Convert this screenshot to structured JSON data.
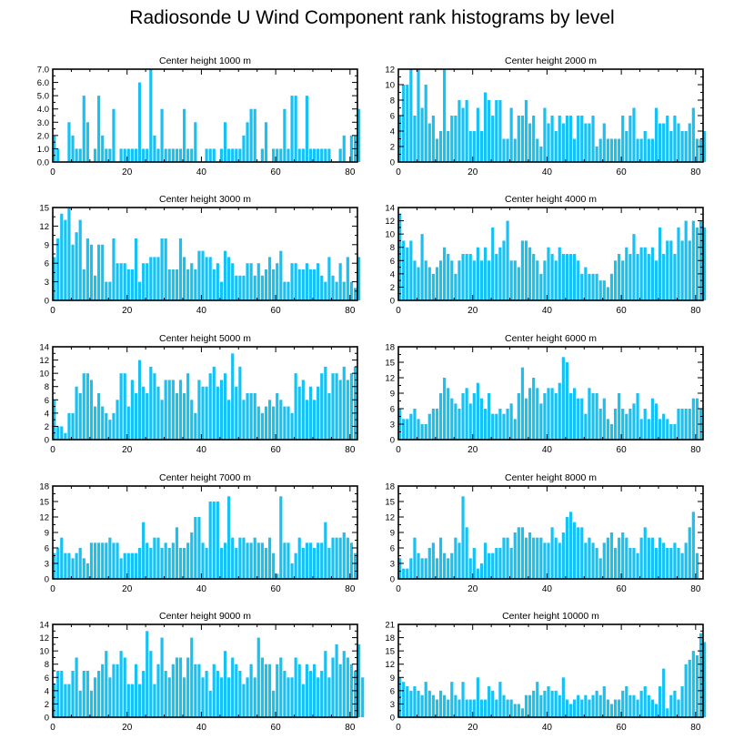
{
  "title": "Radiosonde U Wind Component rank histograms by level",
  "colors": {
    "bar": "#17c1f4",
    "bar_edge": "#0aa8dc",
    "axis": "#000000",
    "background": "#ffffff"
  },
  "chart_data": [
    {
      "type": "bar",
      "title": "Center height 1000 m",
      "xlim": [
        0,
        82
      ],
      "ylim": [
        0,
        7
      ],
      "xticks": [
        0,
        20,
        40,
        60,
        80
      ],
      "yticks": [
        0,
        1,
        2,
        3,
        4,
        5,
        6,
        7
      ],
      "ytick_labels": [
        "0.0",
        "1.0",
        "2.0",
        "3.0",
        "4.0",
        "5.0",
        "6.0",
        "7.0"
      ],
      "values": [
        2,
        1,
        0,
        0,
        3,
        2,
        1,
        1,
        5,
        3,
        0,
        1,
        5,
        2,
        1,
        1,
        4,
        0,
        1,
        1,
        1,
        1,
        1,
        6,
        1,
        1,
        7,
        2,
        1,
        4,
        1,
        1,
        1,
        1,
        1,
        4,
        1,
        1,
        3,
        0,
        0,
        1,
        1,
        1,
        0,
        1,
        3,
        1,
        1,
        1,
        1,
        2,
        3,
        4,
        4,
        0,
        1,
        3,
        0,
        1,
        1,
        1,
        4,
        1,
        5,
        5,
        1,
        1,
        5,
        1,
        1,
        1,
        1,
        1,
        1,
        0,
        0,
        1,
        2,
        0,
        2,
        2,
        4
      ]
    },
    {
      "type": "bar",
      "title": "Center height 2000 m",
      "xlim": [
        0,
        82
      ],
      "ylim": [
        0,
        12
      ],
      "xticks": [
        0,
        20,
        40,
        60,
        80
      ],
      "yticks": [
        0,
        2,
        4,
        6,
        8,
        10,
        12
      ],
      "ytick_labels": [
        "0",
        "2",
        "4",
        "6",
        "8",
        "10",
        "12"
      ],
      "values": [
        6,
        10,
        10,
        12,
        6,
        12,
        7,
        10,
        5,
        6,
        3,
        4,
        12,
        4,
        6,
        6,
        8,
        7,
        8,
        4,
        4,
        7,
        4,
        9,
        8,
        6,
        8,
        8,
        3,
        3,
        7,
        3,
        6,
        6,
        8,
        5,
        6,
        3,
        2,
        7,
        5,
        6,
        4,
        6,
        5,
        6,
        6,
        3,
        6,
        6,
        5,
        5,
        6,
        2,
        3,
        5,
        3,
        3,
        3,
        3,
        6,
        4,
        6,
        7,
        3,
        3,
        4,
        3,
        3,
        7,
        5,
        5,
        6,
        4,
        6,
        5,
        4,
        4,
        5,
        7,
        3,
        3,
        4
      ]
    },
    {
      "type": "bar",
      "title": "Center height 3000 m",
      "xlim": [
        0,
        82
      ],
      "ylim": [
        0,
        15
      ],
      "xticks": [
        0,
        20,
        40,
        60,
        80
      ],
      "yticks": [
        0,
        3,
        6,
        9,
        12,
        15
      ],
      "ytick_labels": [
        "0",
        "3",
        "6",
        "9",
        "12",
        "15"
      ],
      "values": [
        7,
        10,
        14,
        13,
        15,
        9,
        11,
        13,
        5,
        10,
        9,
        4,
        9,
        9,
        3,
        3,
        10,
        6,
        6,
        6,
        5,
        5,
        10,
        3,
        6,
        6,
        7,
        7,
        7,
        10,
        10,
        5,
        5,
        5,
        10,
        7,
        5,
        6,
        5,
        8,
        8,
        7,
        7,
        5,
        6,
        3,
        8,
        7,
        6,
        4,
        4,
        4,
        6,
        6,
        4,
        6,
        4,
        5,
        7,
        5,
        6,
        8,
        3,
        3,
        6,
        6,
        5,
        5,
        6,
        5,
        5,
        6,
        4,
        3,
        7,
        4,
        3,
        6,
        3,
        7,
        3,
        2,
        7
      ]
    },
    {
      "type": "bar",
      "title": "Center height 4000 m",
      "xlim": [
        0,
        82
      ],
      "ylim": [
        0,
        14
      ],
      "xticks": [
        0,
        20,
        40,
        60,
        80
      ],
      "yticks": [
        0,
        2,
        4,
        6,
        8,
        10,
        12,
        14
      ],
      "ytick_labels": [
        "0",
        "2",
        "4",
        "6",
        "8",
        "10",
        "12",
        "14"
      ],
      "values": [
        13,
        9,
        8,
        9,
        6,
        5,
        10,
        6,
        5,
        4,
        5,
        6,
        8,
        7,
        6,
        4,
        6,
        7,
        7,
        7,
        6,
        8,
        6,
        8,
        6,
        11,
        7,
        8,
        9,
        12,
        6,
        6,
        5,
        9,
        9,
        8,
        7,
        6,
        4,
        6,
        8,
        7,
        6,
        8,
        7,
        7,
        7,
        7,
        6,
        4,
        5,
        4,
        4,
        4,
        3,
        3,
        2,
        4,
        6,
        7,
        6,
        8,
        7,
        10,
        7,
        8,
        8,
        7,
        8,
        6,
        11,
        7,
        9,
        9,
        7,
        11,
        9,
        12,
        9,
        12,
        11,
        12,
        11
      ]
    },
    {
      "type": "bar",
      "title": "Center height 5000 m",
      "xlim": [
        0,
        82
      ],
      "ylim": [
        0,
        14
      ],
      "xticks": [
        0,
        20,
        40,
        60,
        80
      ],
      "yticks": [
        0,
        2,
        4,
        6,
        8,
        10,
        12,
        14
      ],
      "ytick_labels": [
        "0",
        "2",
        "4",
        "6",
        "8",
        "10",
        "12",
        "14"
      ],
      "values": [
        6,
        2,
        2,
        1,
        4,
        4,
        8,
        7,
        10,
        10,
        9,
        5,
        7,
        5,
        4,
        3,
        4,
        6,
        10,
        10,
        5,
        9,
        7,
        12,
        8,
        7,
        11,
        10,
        8,
        6,
        9,
        9,
        9,
        7,
        9,
        7,
        10,
        6,
        4,
        9,
        8,
        8,
        10,
        11,
        8,
        9,
        10,
        6,
        13,
        8,
        11,
        6,
        7,
        7,
        7,
        5,
        4,
        5,
        6,
        5,
        7,
        6,
        5,
        5,
        4,
        10,
        8,
        9,
        6,
        8,
        6,
        8,
        10,
        11,
        7,
        10,
        10,
        9,
        11,
        9,
        10,
        11
      ]
    },
    {
      "type": "bar",
      "title": "Center height 6000 m",
      "xlim": [
        0,
        82
      ],
      "ylim": [
        0,
        18
      ],
      "xticks": [
        0,
        20,
        40,
        60,
        80
      ],
      "yticks": [
        0,
        3,
        6,
        9,
        12,
        15,
        18
      ],
      "ytick_labels": [
        "0",
        "3",
        "6",
        "9",
        "12",
        "15",
        "18"
      ],
      "values": [
        6,
        4,
        4,
        5,
        6,
        4,
        3,
        3,
        5,
        6,
        6,
        9,
        12,
        10,
        8,
        7,
        6,
        9,
        10,
        7,
        9,
        11,
        8,
        6,
        9,
        5,
        5,
        6,
        5,
        6,
        7,
        4,
        9,
        14,
        8,
        10,
        12,
        10,
        7,
        9,
        10,
        10,
        9,
        11,
        16,
        15,
        9,
        10,
        8,
        8,
        5,
        10,
        9,
        9,
        6,
        8,
        4,
        3,
        6,
        9,
        6,
        5,
        6,
        7,
        9,
        4,
        6,
        4,
        8,
        7,
        4,
        5,
        4,
        3,
        3,
        6,
        6,
        6,
        6,
        8,
        8,
        6
      ]
    },
    {
      "type": "bar",
      "title": "Center height 7000 m",
      "xlim": [
        0,
        82
      ],
      "ylim": [
        0,
        18
      ],
      "xticks": [
        0,
        20,
        40,
        60,
        80
      ],
      "yticks": [
        0,
        3,
        6,
        9,
        12,
        15,
        18
      ],
      "ytick_labels": [
        "0",
        "3",
        "6",
        "9",
        "12",
        "15",
        "18"
      ],
      "values": [
        5,
        6,
        8,
        5,
        5,
        4,
        5,
        6,
        4,
        3,
        7,
        7,
        7,
        7,
        7,
        8,
        7,
        7,
        4,
        5,
        5,
        5,
        5,
        6,
        11,
        7,
        6,
        8,
        8,
        6,
        7,
        6,
        7,
        10,
        6,
        6,
        7,
        9,
        12,
        12,
        7,
        6,
        15,
        15,
        15,
        6,
        7,
        16,
        8,
        6,
        8,
        8,
        7,
        7,
        8,
        7,
        7,
        6,
        8,
        5,
        1,
        16,
        7,
        7,
        3,
        5,
        8,
        6,
        7,
        7,
        6,
        7,
        7,
        11,
        6,
        8,
        8,
        8,
        9,
        8,
        7,
        5
      ]
    },
    {
      "type": "bar",
      "title": "Center height 8000 m",
      "xlim": [
        0,
        82
      ],
      "ylim": [
        0,
        18
      ],
      "xticks": [
        0,
        20,
        40,
        60,
        80
      ],
      "yticks": [
        0,
        3,
        6,
        9,
        12,
        15,
        18
      ],
      "ytick_labels": [
        "0",
        "3",
        "6",
        "9",
        "12",
        "15",
        "18"
      ],
      "values": [
        4,
        2,
        2,
        4,
        8,
        5,
        4,
        4,
        6,
        7,
        4,
        8,
        5,
        4,
        5,
        8,
        7,
        16,
        10,
        4,
        6,
        2,
        3,
        7,
        5,
        5,
        6,
        6,
        8,
        8,
        6,
        9,
        10,
        10,
        8,
        9,
        8,
        8,
        8,
        7,
        7,
        10,
        8,
        7,
        9,
        12,
        13,
        11,
        10,
        10,
        7,
        8,
        7,
        6,
        4,
        7,
        8,
        9,
        6,
        8,
        9,
        8,
        6,
        6,
        5,
        8,
        10,
        8,
        8,
        6,
        8,
        7,
        6,
        6,
        7,
        6,
        5,
        7,
        10,
        13,
        5
      ]
    },
    {
      "type": "bar",
      "title": "Center height 9000 m",
      "xlim": [
        0,
        82
      ],
      "ylim": [
        0,
        14
      ],
      "xticks": [
        0,
        20,
        40,
        60,
        80
      ],
      "yticks": [
        0,
        2,
        4,
        6,
        8,
        10,
        12,
        14
      ],
      "ytick_labels": [
        "0",
        "2",
        "4",
        "6",
        "8",
        "10",
        "12",
        "14"
      ],
      "values": [
        5,
        7,
        7,
        5,
        5,
        7,
        9,
        4,
        7,
        7,
        4,
        6,
        7,
        8,
        10,
        6,
        8,
        8,
        10,
        9,
        5,
        5,
        8,
        5,
        7,
        13,
        10,
        5,
        8,
        12,
        7,
        6,
        8,
        9,
        9,
        6,
        9,
        12,
        8,
        8,
        6,
        7,
        4,
        8,
        7,
        6,
        10,
        6,
        9,
        8,
        7,
        5,
        6,
        8,
        6,
        12,
        9,
        8,
        8,
        4,
        8,
        9,
        7,
        6,
        6,
        9,
        8,
        5,
        8,
        7,
        8,
        6,
        7,
        10,
        6,
        9,
        11,
        8,
        10,
        9,
        8,
        7,
        11,
        6
      ]
    },
    {
      "type": "bar",
      "title": "Center height 10000 m",
      "xlim": [
        0,
        82
      ],
      "ylim": [
        0,
        21
      ],
      "xticks": [
        0,
        20,
        40,
        60,
        80
      ],
      "yticks": [
        0,
        3,
        6,
        9,
        12,
        15,
        18,
        21
      ],
      "ytick_labels": [
        "0",
        "3",
        "6",
        "9",
        "12",
        "15",
        "18",
        "21"
      ],
      "values": [
        9,
        8,
        7,
        6,
        7,
        6,
        5,
        8,
        6,
        5,
        4,
        6,
        5,
        4,
        8,
        5,
        4,
        8,
        4,
        4,
        4,
        9,
        4,
        4,
        7,
        6,
        4,
        8,
        5,
        4,
        4,
        3,
        3,
        2,
        5,
        5,
        6,
        8,
        5,
        6,
        7,
        6,
        6,
        5,
        9,
        4,
        3,
        4,
        5,
        4,
        5,
        4,
        5,
        6,
        5,
        7,
        4,
        3,
        4,
        4,
        6,
        7,
        5,
        5,
        4,
        6,
        7,
        5,
        4,
        3,
        7,
        11,
        2,
        5,
        6,
        4,
        7,
        12,
        13,
        15,
        14,
        19,
        17
      ]
    }
  ]
}
